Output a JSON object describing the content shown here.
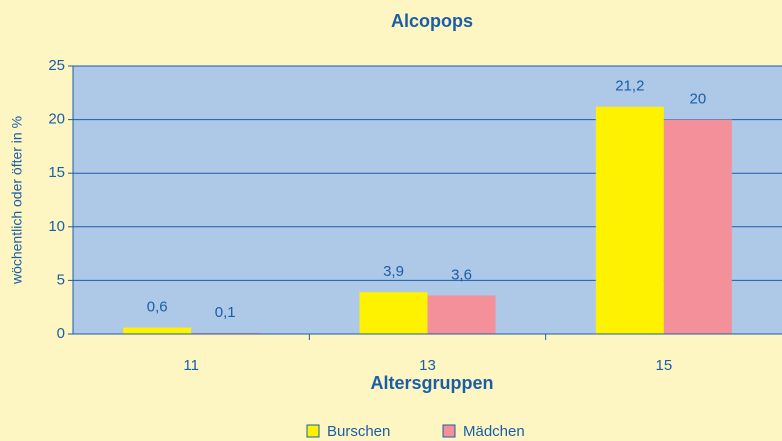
{
  "chart_data": {
    "type": "bar",
    "title": "Alcopops",
    "x_label": "Altersgruppen",
    "y_label": "wöchentlich oder öfter in %",
    "categories": [
      "11",
      "13",
      "15"
    ],
    "series": [
      {
        "name": "Burschen",
        "color": "#fff200",
        "values": [
          0.6,
          3.9,
          21.2
        ],
        "value_labels": [
          "0,6",
          "3,9",
          "21,2"
        ]
      },
      {
        "name": "Mädchen",
        "color": "#f4909a",
        "values": [
          0.1,
          3.6,
          20
        ],
        "value_labels": [
          "0,1",
          "3,6",
          "20"
        ]
      }
    ],
    "ylim": [
      0,
      25
    ],
    "yticks": [
      0,
      5,
      10,
      15,
      20,
      25
    ],
    "grid": true,
    "legend": "bottom"
  }
}
